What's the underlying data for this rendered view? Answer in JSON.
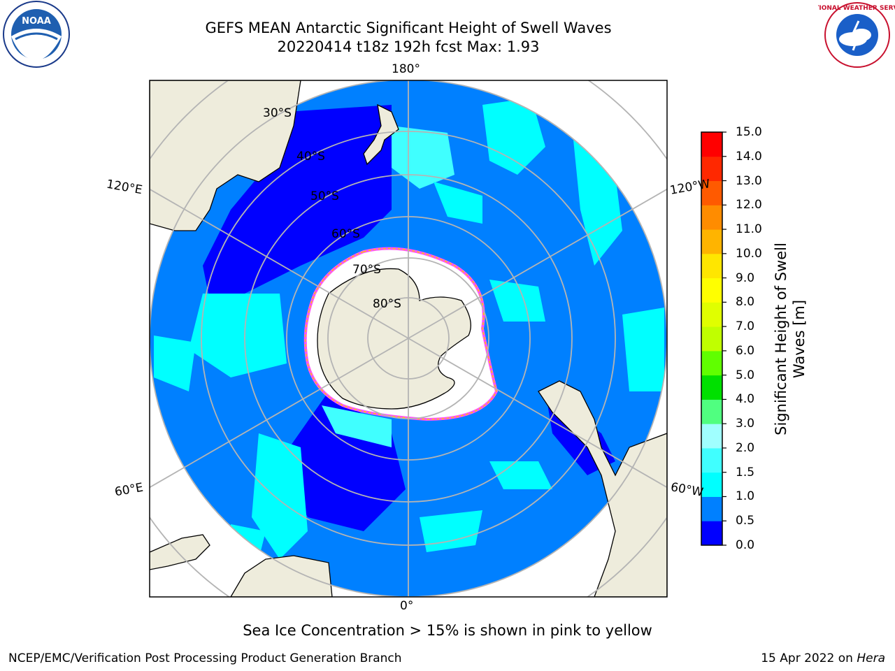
{
  "title": {
    "line1": "GEFS MEAN Antarctic Significant Height of Swell Waves",
    "line2": "20220414 t18z 192h fcst   Max: 1.93"
  },
  "logos": {
    "left": "NOAA",
    "right": "NATIONAL WEATHER SERVICE"
  },
  "map": {
    "projection": "south-polar-stereographic",
    "longitude_labels": {
      "top": "180°",
      "bottom": "0°",
      "upper_left": "120°E",
      "upper_right": "120°W",
      "lower_left": "60°E",
      "lower_right": "60°W"
    },
    "latitude_labels": [
      "30°S",
      "40°S",
      "50°S",
      "60°S",
      "70°S",
      "80°S"
    ],
    "colors": {
      "land": "#eeecdc",
      "ice_white": "#ffffff",
      "grid": "#b4b4b4"
    }
  },
  "colorbar": {
    "label": "Significant Height of Swell Waves [m]",
    "ticks": [
      "0.0",
      "0.5",
      "1.0",
      "1.5",
      "2.0",
      "3.0",
      "4.0",
      "5.0",
      "6.0",
      "7.0",
      "8.0",
      "9.0",
      "10.0",
      "11.0",
      "12.0",
      "13.0",
      "14.0",
      "15.0"
    ],
    "colors": [
      "#0000ff",
      "#0080ff",
      "#00ffff",
      "#40ffff",
      "#a0ffff",
      "#50ff80",
      "#00e000",
      "#60ff00",
      "#c0ff00",
      "#e0ff00",
      "#ffff00",
      "#ffe600",
      "#ffb400",
      "#ff8c00",
      "#ff5a00",
      "#ff2800",
      "#ff0000"
    ]
  },
  "footer": {
    "note": "Sea Ice Concentration > 15% is shown in pink to yellow",
    "credit": "NCEP/EMC/Verification Post Processing Product Generation Branch",
    "date_prefix": "15 Apr 2022 on ",
    "machine": "Hera"
  }
}
